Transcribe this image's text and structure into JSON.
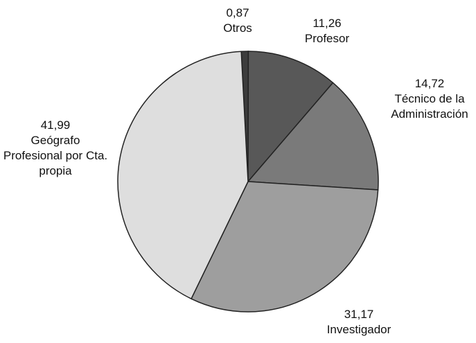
{
  "chart_data": {
    "type": "pie",
    "categories": [
      "Otros",
      "Profesor",
      "Técnico de la Administración",
      "Investigador",
      "Geógrafo Profesional por Cta. propia"
    ],
    "values": [
      0.87,
      11.26,
      14.72,
      31.17,
      41.99
    ],
    "value_labels": [
      "0,87",
      "11,26",
      "14,72",
      "31,17",
      "41,99"
    ],
    "colors": [
      "#3c3c3c",
      "#585858",
      "#7a7a7a",
      "#9e9e9e",
      "#dedede"
    ]
  }
}
